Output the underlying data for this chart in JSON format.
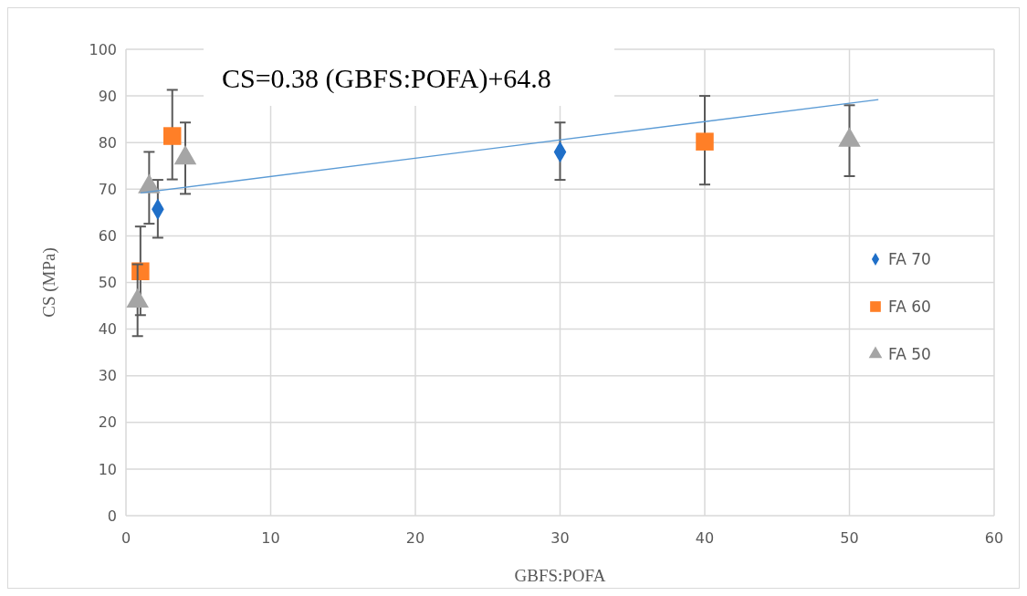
{
  "chart_data": {
    "type": "scatter",
    "xlabel": "GBFS:POFA",
    "ylabel": "CS (MPa)",
    "xlim": [
      0,
      60
    ],
    "xticks": [
      0,
      10,
      20,
      30,
      40,
      50,
      60
    ],
    "ylim": [
      0,
      100
    ],
    "yticks": [
      0,
      10,
      20,
      30,
      40,
      50,
      60,
      70,
      80,
      90,
      100
    ],
    "grid": true,
    "legend": "right",
    "annotations": [
      "CS=0.38 (GBFS:POFA)+64.8"
    ],
    "series": [
      {
        "name": "FA 70",
        "color": "#1f6fc8",
        "marker": "diamond",
        "x": [
          2.2,
          30
        ],
        "values": [
          65.7,
          78
        ],
        "errors": [
          [
            59.6,
            72
          ],
          [
            72,
            84.3
          ]
        ]
      },
      {
        "name": "FA 60",
        "color": "#ff7f27",
        "marker": "square",
        "x": [
          1,
          3.2,
          40
        ],
        "values": [
          52.4,
          81.4,
          80.2
        ],
        "errors": [
          [
            43,
            62
          ],
          [
            72.1,
            91.3
          ],
          [
            71,
            90
          ]
        ]
      },
      {
        "name": "FA 50",
        "color": "#a5a5a5",
        "marker": "triangle",
        "x": [
          0.8,
          1.6,
          4.1,
          50
        ],
        "values": [
          46,
          70.5,
          76.7,
          80.5
        ],
        "errors": [
          [
            38.5,
            53.9
          ],
          [
            62.6,
            78
          ],
          [
            69,
            84.3
          ],
          [
            72.8,
            88
          ]
        ]
      },
      {
        "type": "line",
        "color": "#5b9bd5",
        "marker": "none",
        "x": [
          1,
          52
        ],
        "values": [
          69.2,
          89.2
        ]
      }
    ]
  }
}
